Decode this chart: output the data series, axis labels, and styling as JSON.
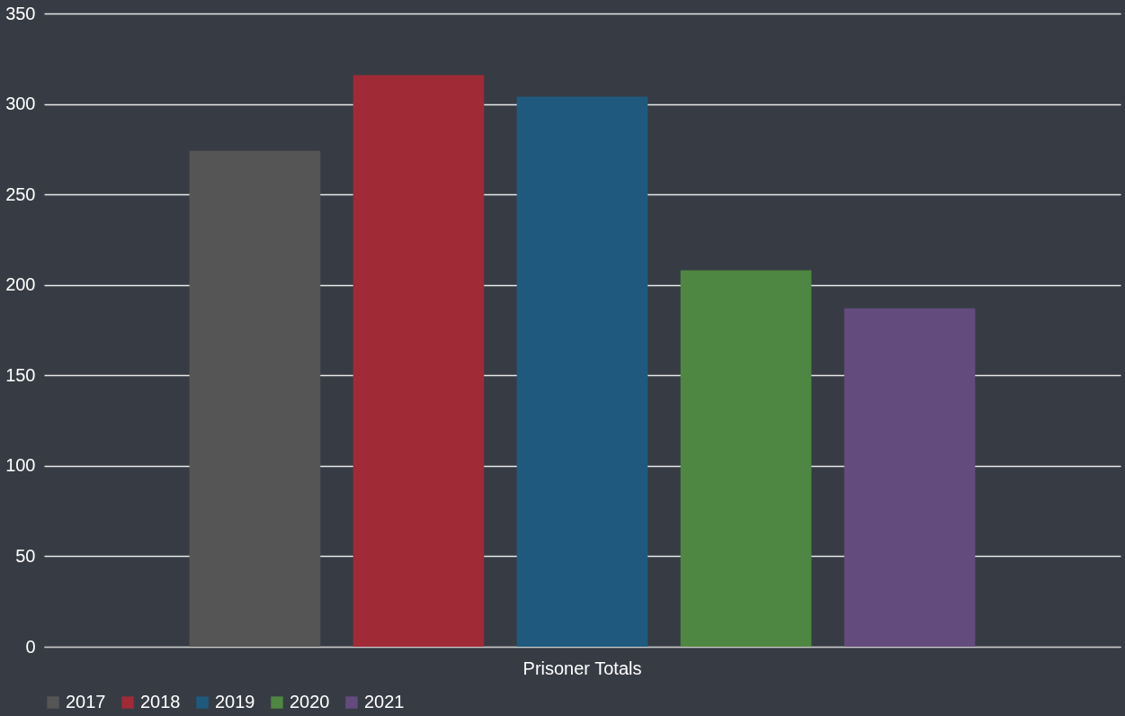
{
  "chart_data": {
    "type": "bar",
    "categories": [
      "Prisoner Totals"
    ],
    "series": [
      {
        "name": "2017",
        "color": "#555555",
        "values": [
          274
        ]
      },
      {
        "name": "2018",
        "color": "#a12a37",
        "values": [
          316
        ]
      },
      {
        "name": "2019",
        "color": "#1f5a7e",
        "values": [
          304
        ]
      },
      {
        "name": "2020",
        "color": "#4e8741",
        "values": [
          208
        ]
      },
      {
        "name": "2021",
        "color": "#634b7e",
        "values": [
          187
        ]
      }
    ],
    "ylim": [
      0,
      350
    ],
    "yticks": [
      0,
      50,
      100,
      150,
      200,
      250,
      300,
      350
    ],
    "grid": "y",
    "legend": "bottom"
  }
}
